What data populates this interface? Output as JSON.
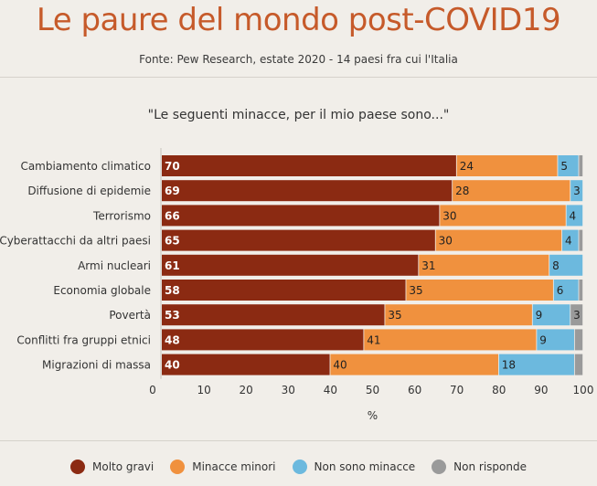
{
  "header": {
    "title": "Le paure del mondo post-COVID19",
    "source": "Fonte: Pew Research, estate 2020 - 14 paesi fra cui l'Italia",
    "subtitle": "\"Le seguenti minacce, per il mio paese sono...\""
  },
  "colors": {
    "molto_gravi": "#8b2a12",
    "minacce_minori": "#f0913e",
    "non_sono_minacce": "#6cb9de",
    "non_risponde": "#9a9a9a",
    "title": "#c65a2a"
  },
  "chart_data": {
    "type": "bar",
    "orientation": "horizontal",
    "stacked": true,
    "categories": [
      "Cambiamento climatico",
      "Diffusione di epidemie",
      "Terrorismo",
      "Cyberattacchi da altri paesi",
      "Armi nucleari",
      "Economia globale",
      "Povertà",
      "Conflitti fra gruppi etnici",
      "Migrazioni di massa"
    ],
    "series": [
      {
        "name": "Molto gravi",
        "color": "#8b2a12",
        "values": [
          70,
          69,
          66,
          65,
          61,
          58,
          53,
          48,
          40
        ]
      },
      {
        "name": "Minacce minori",
        "color": "#f0913e",
        "values": [
          24,
          28,
          30,
          30,
          31,
          35,
          35,
          41,
          40
        ]
      },
      {
        "name": "Non sono minacce",
        "color": "#6cb9de",
        "values": [
          5,
          3,
          4,
          4,
          8,
          6,
          9,
          9,
          18
        ]
      },
      {
        "name": "Non risponde",
        "color": "#9a9a9a",
        "values": [
          1,
          0,
          0,
          1,
          0,
          1,
          3,
          2,
          2
        ]
      }
    ],
    "data_labels": [
      [
        "70",
        "24",
        "5",
        ""
      ],
      [
        "69",
        "28",
        "3",
        ""
      ],
      [
        "66",
        "30",
        "4",
        ""
      ],
      [
        "65",
        "30",
        "4",
        ""
      ],
      [
        "61",
        "31",
        "8",
        ""
      ],
      [
        "58",
        "35",
        "6",
        ""
      ],
      [
        "53",
        "35",
        "9",
        "3"
      ],
      [
        "48",
        "41",
        "9",
        ""
      ],
      [
        "40",
        "40",
        "18",
        ""
      ]
    ],
    "xticks": [
      "0",
      "10",
      "20",
      "30",
      "40",
      "50",
      "60",
      "70",
      "80",
      "90",
      "100"
    ],
    "xlabel": "%",
    "xlim": [
      0,
      100
    ],
    "legend_position": "bottom"
  }
}
